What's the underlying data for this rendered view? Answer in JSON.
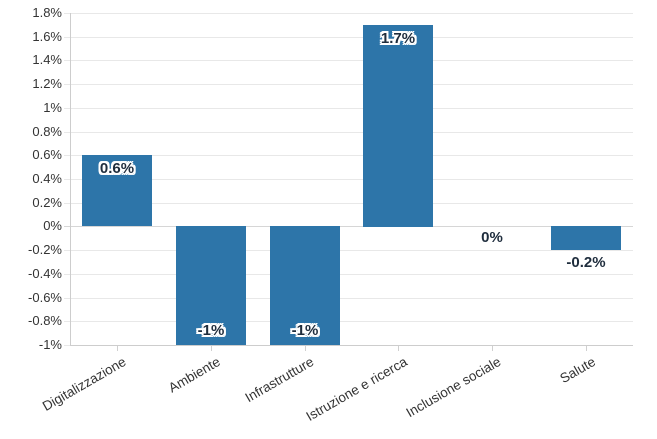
{
  "chart_data": {
    "type": "bar",
    "title": "",
    "xlabel": "",
    "ylabel": "",
    "categories": [
      "Digitalizzazione",
      "Ambiente",
      "Infrastrutture",
      "Istruzione e ricerca",
      "Inclusione sociale",
      "Salute"
    ],
    "values": [
      0.6,
      -1,
      -1,
      1.7,
      0,
      -0.2
    ],
    "data_labels": [
      "0.6%",
      "-1%",
      "-1%",
      "1.7%",
      "0%",
      "-0.2%"
    ],
    "data_label_positions": [
      "inside-top",
      "inside-bottom",
      "inside-bottom",
      "inside-top",
      "below-zero",
      "below-bar"
    ],
    "ylim": [
      -1.0,
      1.8
    ],
    "ytick_step": 0.2,
    "ytick_labels": [
      "1.8%",
      "1.6%",
      "1.4%",
      "1.2%",
      "1%",
      "0.8%",
      "0.6%",
      "0.4%",
      "0.2%",
      "0%",
      "-0.2%",
      "-0.4%",
      "-0.6%",
      "-0.8%",
      "-1%"
    ],
    "grid": true,
    "legend": false,
    "colors": {
      "bar": "#2d75a9",
      "grid": "#e8e8e8",
      "zero_line": "#d6d6d6",
      "axis_line": "#cdcdcd",
      "tick_mark": "#d0d0d0",
      "tick_text": "#333333",
      "data_label_text": "#1f2d3d",
      "data_label_outline": "#ffffff",
      "background": "#ffffff"
    }
  }
}
